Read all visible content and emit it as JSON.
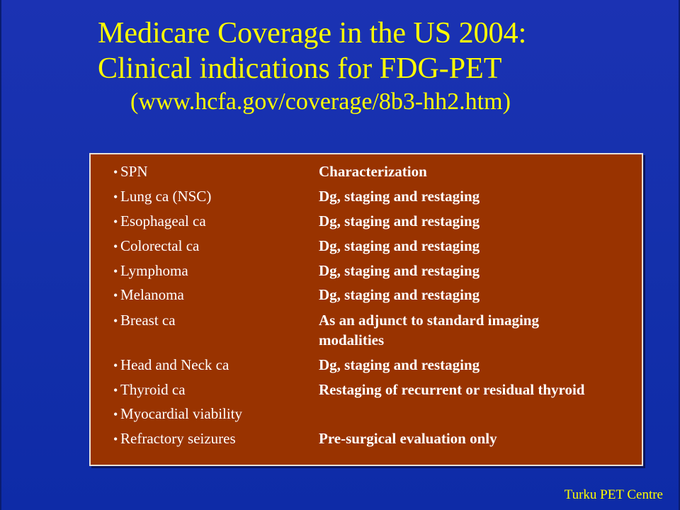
{
  "slide": {
    "title_line1": "Medicare Coverage in the US 2004:",
    "title_line2": "Clinical indications for FDG-PET",
    "title_url": "(www.hcfa.gov/coverage/8b3-hh2.htm)",
    "bullet_char": "•",
    "indications": [
      {
        "label": "SPN",
        "coverage": "Characterization"
      },
      {
        "label": "Lung ca (NSC)",
        "coverage": "Dg, staging and restaging"
      },
      {
        "label": "Esophageal ca",
        "coverage": "Dg, staging and restaging"
      },
      {
        "label": "Colorectal ca",
        "coverage": "Dg, staging and restaging"
      },
      {
        "label": "Lymphoma",
        "coverage": "Dg, staging and restaging"
      },
      {
        "label": "Melanoma",
        "coverage": "Dg, staging and restaging"
      },
      {
        "label": "Breast ca",
        "coverage_line1": "As an adjunct to standard imaging",
        "coverage_line2": "modalities"
      },
      {
        "label": "Head and Neck ca",
        "coverage": "Dg, staging and restaging"
      },
      {
        "label": "Thyroid ca",
        "coverage": "Restaging of recurrent or residual thyroid"
      },
      {
        "label": "Myocardial viability",
        "coverage": ""
      },
      {
        "label": "Refractory seizures",
        "coverage": "Pre-surgical evaluation only"
      }
    ],
    "footer": "Turku PET Centre",
    "colors": {
      "background": "#1430ab",
      "title": "#ffff00",
      "panel": "#993300",
      "panel_text": "#ffffff"
    }
  }
}
